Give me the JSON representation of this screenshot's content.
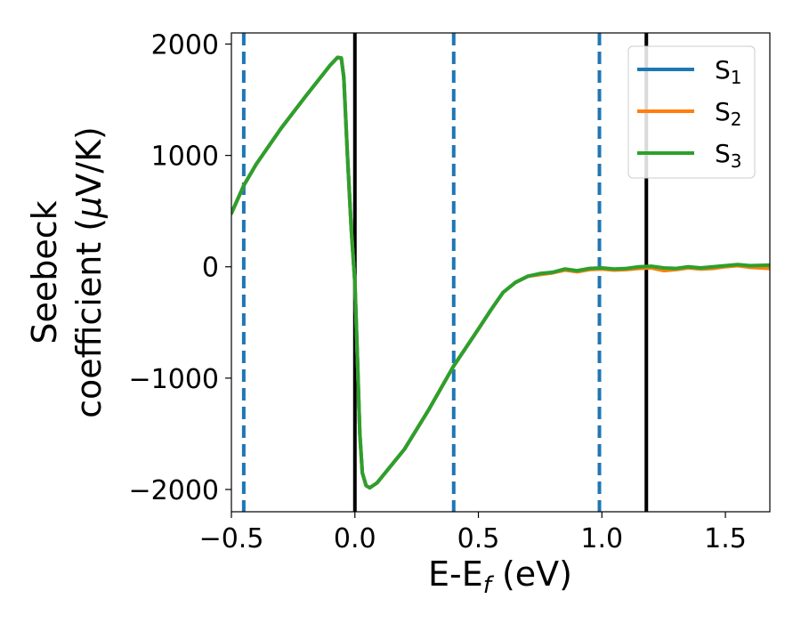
{
  "chart_data": {
    "type": "line",
    "xlabel": {
      "main": "E-E",
      "sub": "f",
      "unit": " (eV)"
    },
    "ylabel": {
      "line1": "Seebeck",
      "line2": "coefficient  (",
      "mu": "μ",
      "unit": "V/K)"
    },
    "xlim": [
      -0.5,
      1.68
    ],
    "ylim": [
      -2200,
      2100
    ],
    "xticks": [
      -0.5,
      0.0,
      0.5,
      1.0,
      1.5
    ],
    "xtick_labels": [
      "−0.5",
      "0.0",
      "0.5",
      "1.0",
      "1.5"
    ],
    "yticks": [
      -2000,
      -1000,
      0,
      1000,
      2000
    ],
    "ytick_labels": [
      "−2000",
      "−1000",
      "0",
      "1000",
      "2000"
    ],
    "vlines": [
      {
        "x": -0.45,
        "style": "dashed",
        "color": "#1f77b4"
      },
      {
        "x": 0.0,
        "style": "solid",
        "color": "#000000"
      },
      {
        "x": 0.4,
        "style": "dashed",
        "color": "#1f77b4"
      },
      {
        "x": 0.99,
        "style": "dashed",
        "color": "#1f77b4"
      },
      {
        "x": 1.18,
        "style": "solid",
        "color": "#000000"
      }
    ],
    "legend_position": "top-right",
    "series": [
      {
        "name": "S",
        "sub": "1",
        "color": "#1f77b4",
        "points": [
          [
            -0.5,
            480
          ],
          [
            -0.45,
            730
          ],
          [
            -0.4,
            920
          ],
          [
            -0.3,
            1240
          ],
          [
            -0.2,
            1530
          ],
          [
            -0.1,
            1810
          ],
          [
            -0.07,
            1880
          ],
          [
            -0.055,
            1875
          ],
          [
            -0.045,
            1700
          ],
          [
            -0.03,
            1000
          ],
          [
            -0.015,
            350
          ],
          [
            0.0,
            -150
          ],
          [
            0.01,
            -800
          ],
          [
            0.02,
            -1500
          ],
          [
            0.03,
            -1850
          ],
          [
            0.045,
            -1965
          ],
          [
            0.06,
            -1985
          ],
          [
            0.09,
            -1940
          ],
          [
            0.2,
            -1640
          ],
          [
            0.3,
            -1280
          ],
          [
            0.4,
            -890
          ],
          [
            0.5,
            -560
          ],
          [
            0.55,
            -390
          ],
          [
            0.6,
            -230
          ],
          [
            0.65,
            -140
          ],
          [
            0.7,
            -85
          ],
          [
            0.75,
            -65
          ],
          [
            0.8,
            -50
          ],
          [
            0.85,
            -25
          ],
          [
            0.9,
            -40
          ],
          [
            0.95,
            -20
          ],
          [
            1.0,
            -15
          ],
          [
            1.05,
            -25
          ],
          [
            1.1,
            -20
          ],
          [
            1.15,
            -5
          ],
          [
            1.2,
            0
          ],
          [
            1.25,
            -15
          ],
          [
            1.3,
            -20
          ],
          [
            1.35,
            -5
          ],
          [
            1.4,
            -15
          ],
          [
            1.45,
            -5
          ],
          [
            1.5,
            5
          ],
          [
            1.55,
            15
          ],
          [
            1.6,
            5
          ],
          [
            1.68,
            10
          ]
        ]
      },
      {
        "name": "S",
        "sub": "2",
        "color": "#ff7f0e",
        "points": [
          [
            -0.5,
            480
          ],
          [
            -0.45,
            730
          ],
          [
            -0.4,
            920
          ],
          [
            -0.3,
            1240
          ],
          [
            -0.2,
            1530
          ],
          [
            -0.1,
            1810
          ],
          [
            -0.07,
            1880
          ],
          [
            -0.055,
            1875
          ],
          [
            -0.045,
            1700
          ],
          [
            -0.03,
            1000
          ],
          [
            -0.015,
            350
          ],
          [
            0.0,
            -150
          ],
          [
            0.01,
            -800
          ],
          [
            0.02,
            -1500
          ],
          [
            0.03,
            -1850
          ],
          [
            0.045,
            -1965
          ],
          [
            0.06,
            -1985
          ],
          [
            0.09,
            -1940
          ],
          [
            0.2,
            -1640
          ],
          [
            0.3,
            -1280
          ],
          [
            0.4,
            -890
          ],
          [
            0.5,
            -560
          ],
          [
            0.55,
            -390
          ],
          [
            0.6,
            -230
          ],
          [
            0.65,
            -140
          ],
          [
            0.7,
            -85
          ],
          [
            0.75,
            -70
          ],
          [
            0.8,
            -55
          ],
          [
            0.85,
            -30
          ],
          [
            0.9,
            -45
          ],
          [
            0.95,
            -25
          ],
          [
            1.0,
            -20
          ],
          [
            1.05,
            -30
          ],
          [
            1.1,
            -25
          ],
          [
            1.15,
            -15
          ],
          [
            1.2,
            -10
          ],
          [
            1.25,
            -35
          ],
          [
            1.3,
            -25
          ],
          [
            1.35,
            -10
          ],
          [
            1.4,
            -20
          ],
          [
            1.45,
            -15
          ],
          [
            1.5,
            0
          ],
          [
            1.55,
            10
          ],
          [
            1.6,
            -5
          ],
          [
            1.68,
            -15
          ]
        ]
      },
      {
        "name": "S",
        "sub": "3",
        "color": "#2ca02c",
        "points": [
          [
            -0.5,
            480
          ],
          [
            -0.45,
            730
          ],
          [
            -0.4,
            920
          ],
          [
            -0.3,
            1240
          ],
          [
            -0.2,
            1530
          ],
          [
            -0.1,
            1810
          ],
          [
            -0.07,
            1880
          ],
          [
            -0.055,
            1875
          ],
          [
            -0.045,
            1700
          ],
          [
            -0.03,
            1000
          ],
          [
            -0.015,
            350
          ],
          [
            0.0,
            -150
          ],
          [
            0.01,
            -800
          ],
          [
            0.02,
            -1500
          ],
          [
            0.03,
            -1850
          ],
          [
            0.045,
            -1965
          ],
          [
            0.06,
            -1985
          ],
          [
            0.09,
            -1940
          ],
          [
            0.2,
            -1640
          ],
          [
            0.3,
            -1280
          ],
          [
            0.4,
            -890
          ],
          [
            0.5,
            -560
          ],
          [
            0.55,
            -390
          ],
          [
            0.6,
            -230
          ],
          [
            0.65,
            -140
          ],
          [
            0.7,
            -85
          ],
          [
            0.75,
            -60
          ],
          [
            0.8,
            -50
          ],
          [
            0.85,
            -20
          ],
          [
            0.9,
            -35
          ],
          [
            0.95,
            -15
          ],
          [
            1.0,
            -10
          ],
          [
            1.05,
            -20
          ],
          [
            1.1,
            -15
          ],
          [
            1.15,
            0
          ],
          [
            1.2,
            5
          ],
          [
            1.25,
            -10
          ],
          [
            1.3,
            -15
          ],
          [
            1.35,
            0
          ],
          [
            1.4,
            -10
          ],
          [
            1.45,
            0
          ],
          [
            1.5,
            10
          ],
          [
            1.55,
            20
          ],
          [
            1.6,
            10
          ],
          [
            1.68,
            15
          ]
        ]
      }
    ]
  }
}
